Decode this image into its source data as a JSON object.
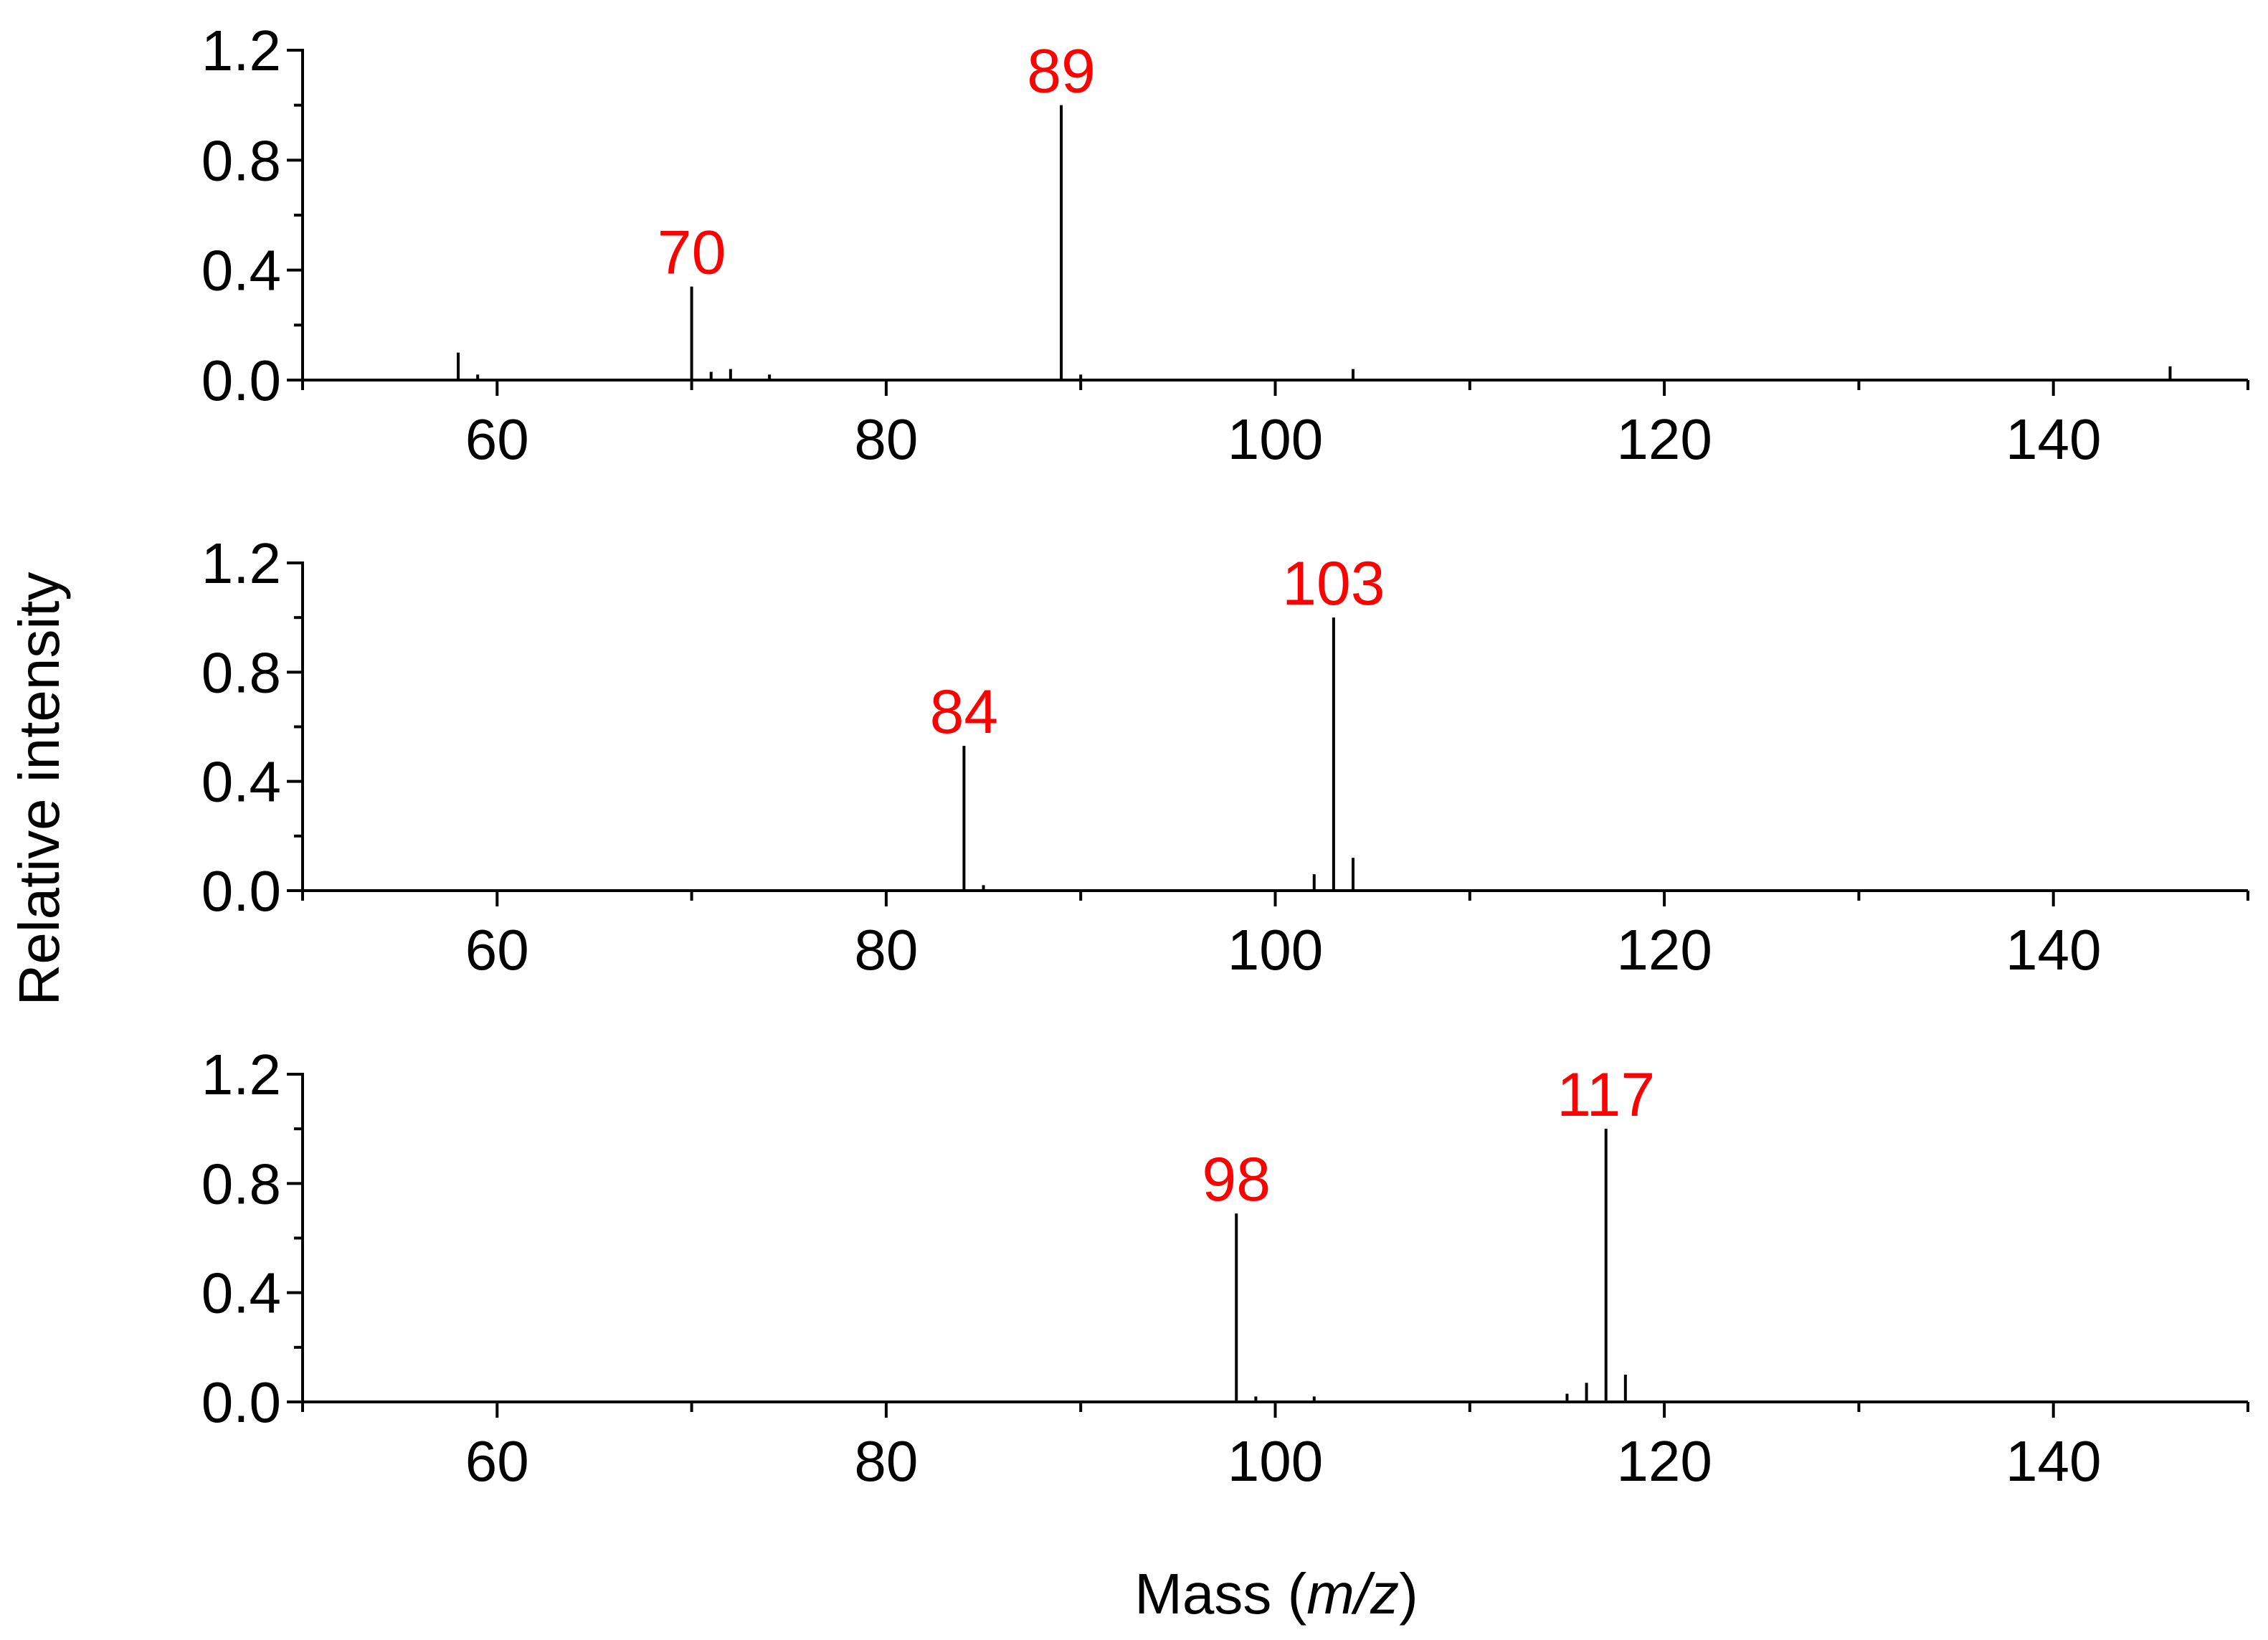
{
  "chart_data": {
    "type": "stem",
    "ylabel": "Relative intensity",
    "xlabel": {
      "prefix": "Mass (",
      "italic": "m/z",
      "suffix": ")"
    },
    "xlim": [
      50,
      150
    ],
    "ylim": [
      0,
      1.2
    ],
    "xticks": [
      60,
      80,
      100,
      120,
      140
    ],
    "yticks": [
      "0.0",
      "0.4",
      "0.8",
      "1.2"
    ],
    "label_color": "#ff0000",
    "line_color": "#000000",
    "panels": [
      {
        "peaks": [
          {
            "x": 58,
            "y": 0.1
          },
          {
            "x": 59,
            "y": 0.02
          },
          {
            "x": 70,
            "y": 0.34
          },
          {
            "x": 71,
            "y": 0.03
          },
          {
            "x": 72,
            "y": 0.04
          },
          {
            "x": 74,
            "y": 0.02
          },
          {
            "x": 89,
            "y": 1.0
          },
          {
            "x": 90,
            "y": 0.02
          },
          {
            "x": 104,
            "y": 0.04
          },
          {
            "x": 146,
            "y": 0.05
          }
        ],
        "labels": [
          {
            "x": 70,
            "y": 0.34,
            "text": "70"
          },
          {
            "x": 89,
            "y": 1.0,
            "text": "89"
          }
        ]
      },
      {
        "peaks": [
          {
            "x": 84,
            "y": 0.53
          },
          {
            "x": 85,
            "y": 0.02
          },
          {
            "x": 102,
            "y": 0.06
          },
          {
            "x": 103,
            "y": 1.0
          },
          {
            "x": 104,
            "y": 0.12
          }
        ],
        "labels": [
          {
            "x": 84,
            "y": 0.53,
            "text": "84"
          },
          {
            "x": 103,
            "y": 1.0,
            "text": "103"
          }
        ]
      },
      {
        "peaks": [
          {
            "x": 98,
            "y": 0.69
          },
          {
            "x": 99,
            "y": 0.02
          },
          {
            "x": 102,
            "y": 0.02
          },
          {
            "x": 115,
            "y": 0.03
          },
          {
            "x": 116,
            "y": 0.07
          },
          {
            "x": 117,
            "y": 1.0
          },
          {
            "x": 118,
            "y": 0.1
          }
        ],
        "labels": [
          {
            "x": 98,
            "y": 0.69,
            "text": "98"
          },
          {
            "x": 117,
            "y": 1.0,
            "text": "117"
          }
        ]
      }
    ]
  }
}
